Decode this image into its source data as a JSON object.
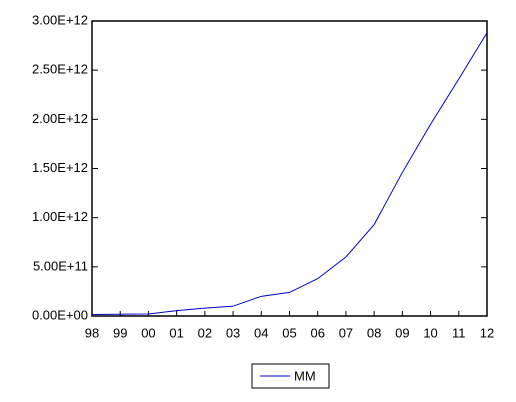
{
  "chart_data": {
    "type": "line",
    "categories": [
      "98",
      "99",
      "00",
      "01",
      "02",
      "03",
      "04",
      "05",
      "06",
      "07",
      "08",
      "09",
      "10",
      "11",
      "12"
    ],
    "series": [
      {
        "name": "MM",
        "color": "#0000c8",
        "values": [
          15000000000,
          18000000000,
          20000000000,
          55000000000,
          80000000000,
          100000000000,
          200000000000,
          240000000000,
          380000000000,
          600000000000,
          930000000000,
          1460000000000,
          1950000000000,
          2410000000000,
          2880000000000
        ]
      }
    ],
    "ylim": [
      0,
      3000000000000
    ],
    "yticks": [
      {
        "value": 0,
        "label": "0.00E+00"
      },
      {
        "value": 500000000000,
        "label": "5.00E+11"
      },
      {
        "value": 1000000000000,
        "label": "1.00E+12"
      },
      {
        "value": 1500000000000,
        "label": "1.50E+12"
      },
      {
        "value": 2000000000000,
        "label": "2.00E+12"
      },
      {
        "value": 2500000000000,
        "label": "2.50E+12"
      },
      {
        "value": 3000000000000,
        "label": "3.00E+12"
      }
    ],
    "legend": "bottom"
  }
}
